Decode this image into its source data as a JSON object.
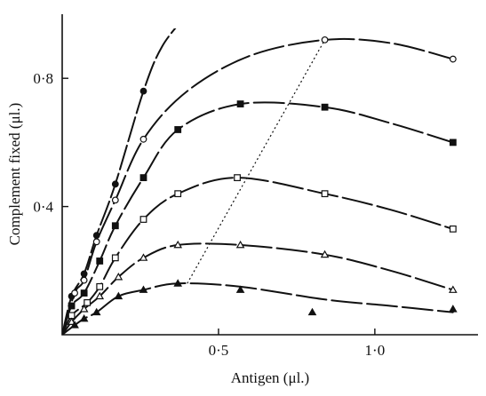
{
  "chart_data": {
    "type": "line",
    "title": "",
    "xlabel": "Antigen (μl.)",
    "ylabel": "Complement fixed (μl.)",
    "xlim": [
      0,
      1.33
    ],
    "ylim": [
      0,
      1.0
    ],
    "x_ticks": [
      {
        "value": 0.5,
        "label": "0·5"
      },
      {
        "value": 1.0,
        "label": "1·0"
      }
    ],
    "y_ticks": [
      {
        "value": 0.4,
        "label": "0·4"
      },
      {
        "value": 0.8,
        "label": "0·8"
      }
    ],
    "grid": false,
    "legend": "none",
    "series": [
      {
        "marker": "filled-circle",
        "points": [
          [
            0.03,
            0.12
          ],
          [
            0.07,
            0.19
          ],
          [
            0.11,
            0.31
          ],
          [
            0.17,
            0.47
          ],
          [
            0.26,
            0.76
          ]
        ],
        "curve": [
          [
            0,
            0
          ],
          [
            0.03,
            0.12
          ],
          [
            0.07,
            0.19
          ],
          [
            0.11,
            0.31
          ],
          [
            0.17,
            0.47
          ],
          [
            0.26,
            0.76
          ],
          [
            0.32,
            0.9
          ],
          [
            0.4,
            1.0
          ]
        ]
      },
      {
        "marker": "open-circle",
        "points": [
          [
            0.04,
            0.13
          ],
          [
            0.07,
            0.17
          ],
          [
            0.11,
            0.29
          ],
          [
            0.17,
            0.42
          ],
          [
            0.26,
            0.61
          ],
          [
            0.84,
            0.92
          ],
          [
            1.25,
            0.86
          ]
        ],
        "curve": [
          [
            0,
            0
          ],
          [
            0.04,
            0.13
          ],
          [
            0.07,
            0.17
          ],
          [
            0.11,
            0.29
          ],
          [
            0.17,
            0.42
          ],
          [
            0.26,
            0.61
          ],
          [
            0.4,
            0.76
          ],
          [
            0.6,
            0.87
          ],
          [
            0.84,
            0.92
          ],
          [
            1.05,
            0.91
          ],
          [
            1.25,
            0.86
          ]
        ]
      },
      {
        "marker": "filled-square",
        "points": [
          [
            0.03,
            0.09
          ],
          [
            0.07,
            0.13
          ],
          [
            0.12,
            0.23
          ],
          [
            0.17,
            0.34
          ],
          [
            0.26,
            0.49
          ],
          [
            0.37,
            0.64
          ],
          [
            0.57,
            0.72
          ],
          [
            0.84,
            0.71
          ],
          [
            1.25,
            0.6
          ]
        ],
        "curve": [
          [
            0,
            0
          ],
          [
            0.03,
            0.09
          ],
          [
            0.07,
            0.13
          ],
          [
            0.12,
            0.23
          ],
          [
            0.17,
            0.34
          ],
          [
            0.26,
            0.49
          ],
          [
            0.37,
            0.64
          ],
          [
            0.57,
            0.72
          ],
          [
            0.84,
            0.71
          ],
          [
            1.05,
            0.66
          ],
          [
            1.25,
            0.6
          ]
        ]
      },
      {
        "marker": "open-square",
        "points": [
          [
            0.03,
            0.06
          ],
          [
            0.08,
            0.1
          ],
          [
            0.12,
            0.15
          ],
          [
            0.17,
            0.24
          ],
          [
            0.26,
            0.36
          ],
          [
            0.37,
            0.44
          ],
          [
            0.56,
            0.49
          ],
          [
            0.84,
            0.44
          ],
          [
            1.25,
            0.33
          ]
        ],
        "curve": [
          [
            0,
            0
          ],
          [
            0.03,
            0.06
          ],
          [
            0.08,
            0.1
          ],
          [
            0.12,
            0.15
          ],
          [
            0.17,
            0.24
          ],
          [
            0.26,
            0.36
          ],
          [
            0.37,
            0.44
          ],
          [
            0.56,
            0.49
          ],
          [
            0.84,
            0.44
          ],
          [
            1.05,
            0.39
          ],
          [
            1.25,
            0.33
          ]
        ]
      },
      {
        "marker": "open-triangle",
        "points": [
          [
            0.03,
            0.04
          ],
          [
            0.07,
            0.08
          ],
          [
            0.12,
            0.12
          ],
          [
            0.18,
            0.18
          ],
          [
            0.26,
            0.24
          ],
          [
            0.37,
            0.28
          ],
          [
            0.57,
            0.28
          ],
          [
            0.84,
            0.25
          ],
          [
            1.25,
            0.14
          ]
        ],
        "curve": [
          [
            0,
            0
          ],
          [
            0.03,
            0.04
          ],
          [
            0.07,
            0.08
          ],
          [
            0.12,
            0.12
          ],
          [
            0.18,
            0.18
          ],
          [
            0.26,
            0.24
          ],
          [
            0.37,
            0.28
          ],
          [
            0.57,
            0.28
          ],
          [
            0.84,
            0.25
          ],
          [
            1.05,
            0.2
          ],
          [
            1.25,
            0.14
          ]
        ]
      },
      {
        "marker": "filled-triangle",
        "points": [
          [
            0.04,
            0.03
          ],
          [
            0.07,
            0.05
          ],
          [
            0.11,
            0.07
          ],
          [
            0.18,
            0.12
          ],
          [
            0.26,
            0.14
          ],
          [
            0.37,
            0.16
          ],
          [
            0.57,
            0.14
          ],
          [
            0.8,
            0.07
          ],
          [
            1.25,
            0.08
          ]
        ],
        "curve": [
          [
            0,
            0
          ],
          [
            0.04,
            0.03
          ],
          [
            0.07,
            0.05
          ],
          [
            0.11,
            0.07
          ],
          [
            0.18,
            0.12
          ],
          [
            0.26,
            0.14
          ],
          [
            0.37,
            0.16
          ],
          [
            0.57,
            0.15
          ],
          [
            0.84,
            0.11
          ],
          [
            1.05,
            0.09
          ],
          [
            1.25,
            0.07
          ]
        ]
      }
    ],
    "annotation_line": {
      "style": "dotted",
      "points": [
        [
          0.4,
          0.16
        ],
        [
          0.84,
          0.92
        ]
      ]
    }
  }
}
